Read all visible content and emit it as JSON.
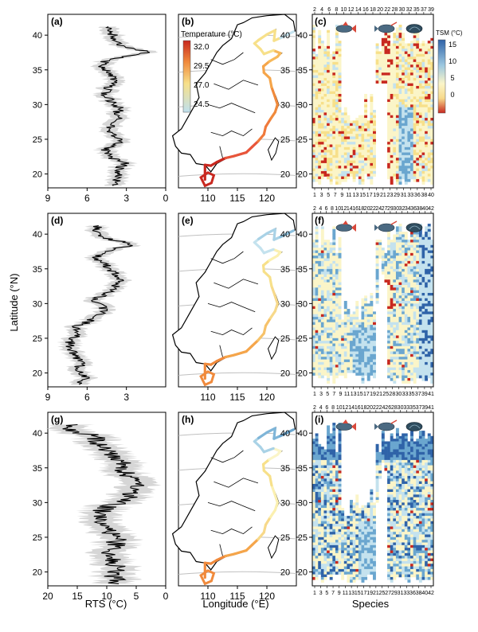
{
  "figure": {
    "ylabel": "Latitude (°N)",
    "col_labels": [
      "RTS (°C)",
      "Longitude (°E)",
      "Species"
    ],
    "colors": {
      "warm": "#c8281f",
      "orange": "#f08a3c",
      "yellow": "#f7e08a",
      "pale": "#fbf5c8",
      "lightblue": "#c4e2ee",
      "midblue": "#6aa6cf",
      "darkblue": "#2f63a8",
      "band": "#cfcfcf",
      "line": "#000000",
      "grid": "#c0c0c0"
    }
  },
  "temperature_legend": {
    "title": "Temperature (°C)",
    "ticks": [
      "32.0",
      "29.5",
      "27.0",
      "24.5"
    ]
  },
  "tsm_legend": {
    "title": "TSM (°C)",
    "ticks": [
      "15",
      "10",
      "5",
      "0"
    ]
  },
  "rows": [
    {
      "rts_label": "(a)",
      "map_label": "(b)",
      "heat_label": "(c)",
      "rts_xticks": [
        "9",
        "6",
        "3",
        "0"
      ],
      "rts_max": 9,
      "map_xticks": [
        "110",
        "115",
        "120"
      ],
      "map_yticks": [
        "40",
        "35",
        "30",
        "25",
        "20"
      ],
      "heat_top_ticks": [
        "2",
        "4",
        "6",
        "8",
        "10",
        "12",
        "14",
        "16",
        "18",
        "20",
        "22",
        "28",
        "30",
        "32",
        "35",
        "37",
        "39"
      ],
      "heat_bottom_ticks": [
        "1",
        "3",
        "5",
        "7",
        "9",
        "11",
        "13",
        "15",
        "17",
        "19",
        "21",
        "23",
        "29",
        "31",
        "33",
        "36",
        "38",
        "40"
      ],
      "lat_ticks": [
        "40",
        "35",
        "30",
        "25",
        "20"
      ]
    },
    {
      "rts_label": "(d)",
      "map_label": "(e)",
      "heat_label": "(f)",
      "rts_xticks": [
        "9",
        "6",
        "3"
      ],
      "rts_max": 9,
      "map_xticks": [
        "110",
        "115",
        "120"
      ],
      "map_yticks": [
        "40",
        "35",
        "30",
        "25",
        "20"
      ],
      "heat_top_ticks": [
        "2",
        "4",
        "6",
        "8",
        "10",
        "12",
        "14",
        "16",
        "18",
        "20",
        "22",
        "24",
        "27",
        "29",
        "30",
        "32",
        "34",
        "36",
        "38",
        "40",
        "42"
      ],
      "heat_bottom_ticks": [
        "1",
        "3",
        "5",
        "7",
        "9",
        "11",
        "13",
        "15",
        "17",
        "19",
        "21",
        "25",
        "28",
        "30",
        "33",
        "35",
        "37",
        "39",
        "41"
      ],
      "lat_ticks": [
        "40",
        "35",
        "30",
        "25",
        "20"
      ]
    },
    {
      "rts_label": "(g)",
      "map_label": "(h)",
      "heat_label": "(i)",
      "rts_xticks": [
        "20",
        "15",
        "10",
        "5",
        "0"
      ],
      "rts_max": 20,
      "map_xticks": [
        "110",
        "115",
        "120"
      ],
      "map_yticks": [
        "40",
        "35",
        "30",
        "25",
        "20"
      ],
      "heat_top_ticks": [
        "2",
        "4",
        "6",
        "8",
        "10",
        "12",
        "14",
        "16",
        "18",
        "20",
        "22",
        "24",
        "26",
        "28",
        "30",
        "33",
        "35",
        "37",
        "39",
        "41"
      ],
      "heat_bottom_ticks": [
        "1",
        "3",
        "5",
        "7",
        "9",
        "11",
        "13",
        "15",
        "17",
        "19",
        "21",
        "25",
        "27",
        "29",
        "31",
        "33",
        "36",
        "38",
        "40",
        "42"
      ],
      "lat_ticks": [
        "40",
        "35",
        "30",
        "25",
        "20"
      ]
    }
  ],
  "chart_data": [
    {
      "type": "line",
      "title": "(a)",
      "xlabel": "RTS (°C)",
      "ylabel": "Latitude (°N)",
      "xlim": [
        9,
        0
      ],
      "ylim": [
        18,
        43
      ],
      "series": [
        {
          "lat": [
            18.5,
            19.5,
            20.5,
            21.5,
            22.5,
            23.5,
            24.5,
            25.5,
            26.5,
            27.5,
            28.5,
            29.5,
            30.5,
            31.5,
            32.5,
            33.5,
            34.5,
            35.5,
            36.5,
            37.5,
            38.5,
            39.5,
            40.5
          ],
          "values": [
            4.0,
            3.6,
            3.8,
            3.0,
            4.3,
            4.6,
            3.6,
            3.8,
            4.5,
            3.6,
            3.8,
            3.5,
            4.2,
            4.7,
            4.4,
            3.9,
            4.5,
            4.8,
            4.6,
            1.2,
            3.3,
            3.8,
            4.2
          ]
        }
      ]
    },
    {
      "type": "line",
      "title": "(d)",
      "xlabel": "RTS (°C)",
      "ylabel": "Latitude (°N)",
      "xlim": [
        9,
        0
      ],
      "ylim": [
        18,
        43
      ],
      "series": [
        {
          "lat": [
            18.5,
            19.5,
            20.5,
            21.5,
            22.5,
            23.5,
            24.5,
            25.5,
            26.5,
            27.5,
            28.5,
            29.5,
            30.5,
            31.5,
            32.5,
            33.5,
            34.5,
            35.5,
            36.5,
            37.5,
            38.5,
            39.5,
            40.5
          ],
          "values": [
            6.5,
            6.1,
            6.8,
            6.3,
            7.0,
            7.2,
            7.3,
            6.6,
            7.0,
            5.8,
            5.0,
            4.7,
            5.4,
            4.5,
            3.8,
            3.4,
            4.0,
            4.5,
            5.3,
            4.8,
            2.4,
            4.8,
            5.2
          ]
        }
      ]
    },
    {
      "type": "line",
      "title": "(g)",
      "xlabel": "RTS (°C)",
      "ylabel": "Latitude (°N)",
      "xlim": [
        20,
        0
      ],
      "ylim": [
        18,
        43
      ],
      "series": [
        {
          "lat": [
            18.5,
            19.5,
            20.5,
            21.5,
            22.5,
            23.5,
            24.5,
            25.5,
            26.5,
            27.5,
            28.5,
            29.5,
            30.5,
            31.5,
            32.5,
            33.5,
            34.5,
            35.5,
            36.5,
            37.5,
            38.5,
            39.5,
            40.5
          ],
          "values": [
            8.5,
            9.0,
            8.3,
            9.0,
            9.5,
            8.7,
            8.3,
            9.2,
            10.0,
            11.5,
            11.2,
            9.5,
            6.5,
            6.0,
            5.2,
            5.5,
            7.5,
            6.5,
            8.5,
            10.0,
            11.5,
            12.0,
            16.0
          ]
        }
      ]
    }
  ]
}
